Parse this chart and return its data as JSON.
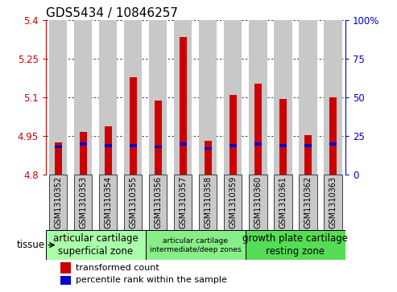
{
  "title": "GDS5434 / 10846257",
  "samples": [
    "GSM1310352",
    "GSM1310353",
    "GSM1310354",
    "GSM1310355",
    "GSM1310356",
    "GSM1310357",
    "GSM1310358",
    "GSM1310359",
    "GSM1310360",
    "GSM1310361",
    "GSM1310362",
    "GSM1310363"
  ],
  "red_values": [
    4.925,
    4.965,
    4.988,
    5.18,
    5.088,
    5.335,
    4.932,
    5.11,
    5.155,
    5.095,
    4.952,
    5.1
  ],
  "blue_percentiles": [
    18,
    20,
    19,
    19,
    18,
    20,
    17,
    19,
    20,
    19,
    19,
    20
  ],
  "y_min": 4.8,
  "y_max": 5.4,
  "y_ticks_left": [
    4.8,
    4.95,
    5.1,
    5.25,
    5.4
  ],
  "y_ticks_right": [
    0,
    25,
    50,
    75,
    100
  ],
  "red_color": "#cc0000",
  "blue_color": "#0000cc",
  "bar_bg_color": "#c8c8c8",
  "tissue_groups": [
    {
      "label": "articular cartilage\nsuperficial zone",
      "indices": [
        0,
        1,
        2,
        3
      ],
      "color": "#aaffaa",
      "fontsize": 8.5
    },
    {
      "label": "articular cartilage\nintermediate/deep zones",
      "indices": [
        4,
        5,
        6,
        7
      ],
      "color": "#88ee88",
      "fontsize": 6.5
    },
    {
      "label": "growth plate cartilage\nresting zone",
      "indices": [
        8,
        9,
        10,
        11
      ],
      "color": "#55dd55",
      "fontsize": 8.5
    }
  ],
  "legend_red": "transformed count",
  "legend_blue": "percentile rank within the sample",
  "tissue_label": "tissue",
  "title_fontsize": 11,
  "tick_fontsize": 8.5,
  "sample_fontsize": 7
}
